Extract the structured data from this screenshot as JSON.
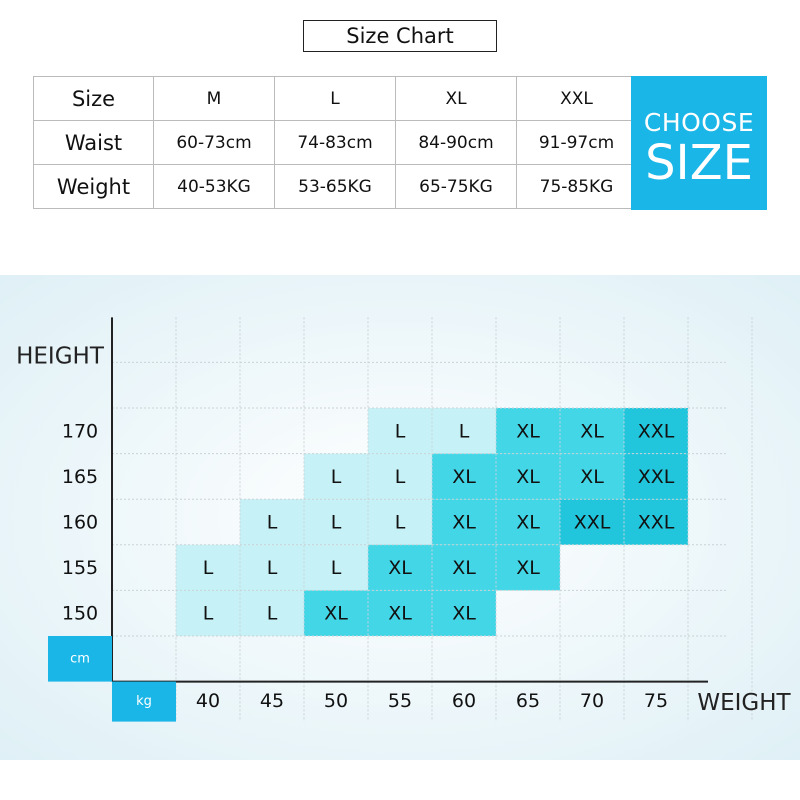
{
  "title": "Size Chart",
  "table": {
    "rows": [
      [
        "Size",
        "M",
        "L",
        "XL",
        "XXL"
      ],
      [
        "Waist",
        "60-73cm",
        "74-83cm",
        "84-90cm",
        "91-97cm"
      ],
      [
        "Weight",
        "40-53KG",
        "53-65KG",
        "65-75KG",
        "75-85KG"
      ]
    ]
  },
  "choose": [
    "CHOOSE",
    "SIZE"
  ],
  "grid": {
    "y_label": "HEIGHT",
    "x_label": "WEIGHT",
    "y_unit": "cm",
    "x_unit": "kg",
    "heights": [
      "170",
      "165",
      "160",
      "155",
      "150"
    ],
    "weights": [
      "40",
      "45",
      "50",
      "55",
      "60",
      "65",
      "70",
      "75"
    ],
    "cells": [
      [
        null,
        null,
        null,
        "L",
        "L",
        "XL",
        "XL",
        "XXL"
      ],
      [
        null,
        null,
        "L",
        "L",
        "XL",
        "XL",
        "XL",
        "XXL"
      ],
      [
        null,
        "L",
        "L",
        "L",
        "XL",
        "XL",
        "XXL",
        "XXL"
      ],
      [
        "L",
        "L",
        "L",
        "XL",
        "XL",
        "XL",
        null,
        null
      ],
      [
        "L",
        "L",
        "XL",
        "XL",
        "XL",
        null,
        null,
        null
      ]
    ]
  }
}
